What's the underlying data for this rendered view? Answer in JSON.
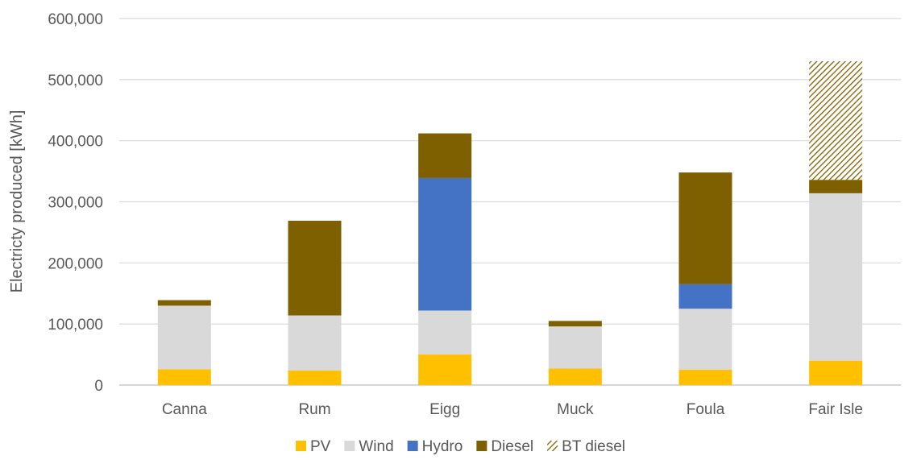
{
  "chart_data": {
    "type": "bar",
    "stacked": true,
    "title": "",
    "xlabel": "",
    "ylabel": "Electricty produced [kWh]",
    "ylim": [
      0,
      600000
    ],
    "yticks": [
      0,
      100000,
      200000,
      300000,
      400000,
      500000,
      600000
    ],
    "ytick_labels": [
      "0",
      "100,000",
      "200,000",
      "300,000",
      "400,000",
      "500,000",
      "600,000"
    ],
    "categories": [
      "Canna",
      "Rum",
      "Eigg",
      "Muck",
      "Foula",
      "Fair Isle"
    ],
    "series": [
      {
        "name": "PV",
        "color": "#FFC000",
        "pattern": "solid",
        "values": [
          26000,
          24000,
          50000,
          27000,
          25000,
          40000
        ]
      },
      {
        "name": "Wind",
        "color": "#D9D9D9",
        "pattern": "solid",
        "values": [
          104000,
          90000,
          72000,
          69000,
          100000,
          274000
        ]
      },
      {
        "name": "Hydro",
        "color": "#4472C4",
        "pattern": "solid",
        "values": [
          0,
          0,
          217000,
          0,
          40000,
          0
        ]
      },
      {
        "name": "Diesel",
        "color": "#7F6000",
        "pattern": "solid",
        "values": [
          9000,
          155000,
          73000,
          9000,
          183000,
          22000
        ]
      },
      {
        "name": "BT diesel",
        "color": "#7F6000",
        "pattern": "hatch",
        "values": [
          0,
          0,
          0,
          0,
          0,
          194000
        ]
      }
    ],
    "grid": true,
    "legend_position": "bottom"
  }
}
